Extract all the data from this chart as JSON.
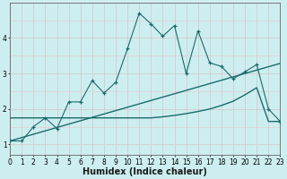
{
  "xlabel": "Humidex (Indice chaleur)",
  "bg_color": "#cdeef0",
  "grid_major_color": "#aedcde",
  "grid_minor_color": "#e8c8cc",
  "line_color": "#1a6b6b",
  "x_data": [
    0,
    1,
    2,
    3,
    4,
    5,
    6,
    7,
    8,
    9,
    10,
    11,
    12,
    13,
    14,
    15,
    16,
    17,
    18,
    19,
    20,
    21,
    22,
    23
  ],
  "y_main": [
    1.1,
    1.1,
    1.5,
    1.75,
    1.45,
    2.2,
    2.2,
    2.8,
    2.45,
    2.75,
    3.7,
    4.7,
    4.4,
    4.05,
    4.35,
    3.0,
    4.2,
    3.3,
    3.2,
    2.85,
    3.05,
    3.25,
    2.0,
    1.65
  ],
  "y_trend_slope": [
    1.1,
    1.195,
    1.29,
    1.385,
    1.48,
    1.575,
    1.67,
    1.765,
    1.86,
    1.955,
    2.05,
    2.145,
    2.24,
    2.335,
    2.43,
    2.525,
    2.62,
    2.715,
    2.81,
    2.905,
    3.0,
    3.095,
    3.19,
    3.285
  ],
  "y_trend_flat": [
    1.75,
    1.75,
    1.75,
    1.75,
    1.75,
    1.75,
    1.75,
    1.75,
    1.75,
    1.75,
    1.75,
    1.75,
    1.75,
    1.78,
    1.82,
    1.87,
    1.93,
    2.0,
    2.1,
    2.22,
    2.4,
    2.6,
    1.65,
    1.65
  ],
  "xlim": [
    0,
    23
  ],
  "ylim": [
    0.7,
    5.0
  ],
  "xticks": [
    0,
    1,
    2,
    3,
    4,
    5,
    6,
    7,
    8,
    9,
    10,
    11,
    12,
    13,
    14,
    15,
    16,
    17,
    18,
    19,
    20,
    21,
    22,
    23
  ],
  "yticks": [
    1,
    2,
    3,
    4
  ],
  "xlabel_fontsize": 7,
  "tick_fontsize": 5.5
}
